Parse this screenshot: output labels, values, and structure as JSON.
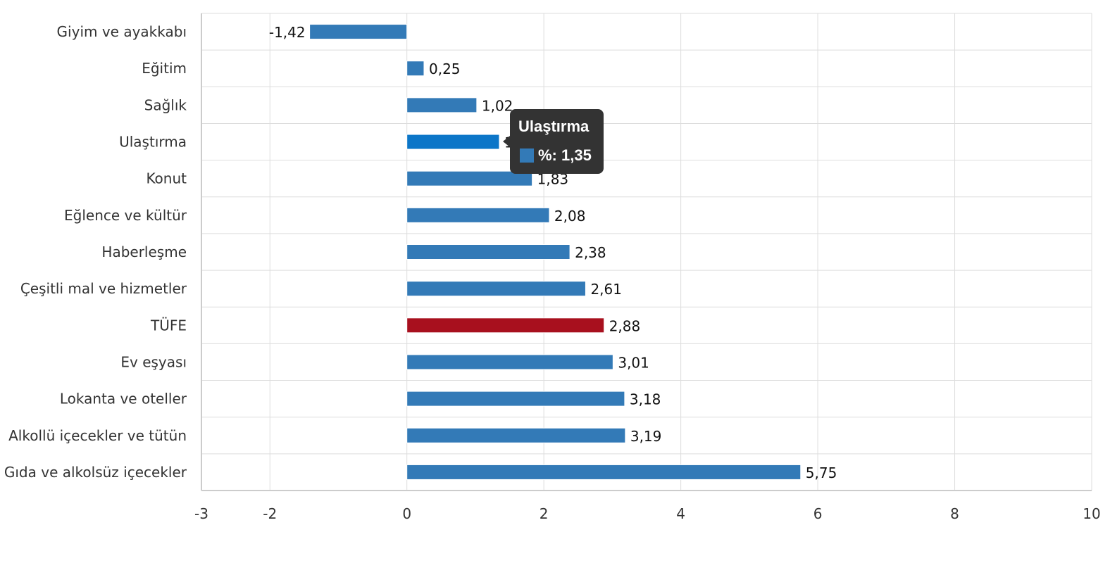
{
  "chart_data": {
    "type": "bar",
    "orientation": "horizontal",
    "categories": [
      "Giyim ve ayakkabı",
      "Eğitim",
      "Sağlık",
      "Ulaştırma",
      "Konut",
      "Eğlence ve kültür",
      "Haberleşme",
      "Çeşitli mal ve hizmetler",
      "TÜFE",
      "Ev eşyası",
      "Lokanta ve oteller",
      "Alkollü içecekler ve tütün",
      "Gıda ve alkolsüz içecekler"
    ],
    "values": [
      -1.42,
      0.25,
      1.02,
      1.35,
      1.83,
      2.08,
      2.38,
      2.61,
      2.88,
      3.01,
      3.18,
      3.19,
      5.75
    ],
    "data_labels": [
      "-1,42",
      "0,25",
      "1,02",
      "1,35",
      "1,83",
      "2,08",
      "2,38",
      "2,61",
      "2,88",
      "3,01",
      "3,18",
      "3,19",
      "5,75"
    ],
    "xlim": [
      -3,
      10
    ],
    "xticks": [
      -3,
      -2,
      0,
      2,
      4,
      6,
      8,
      10
    ],
    "xtick_labels": [
      "-3",
      "-2",
      "0",
      "2",
      "4",
      "6",
      "8",
      "10"
    ],
    "grid": true,
    "title": "",
    "xlabel": "",
    "ylabel": "",
    "colors": {
      "bar": "#337ab7",
      "highlight_bar": "#0c76c8",
      "tufe_bar": "#a8101e",
      "grid": "#dddddd",
      "tooltip_bg": "#333333"
    },
    "highlight_category": "Ulaştırma",
    "special_category": "TÜFE"
  },
  "tooltip": {
    "title": "Ulaştırma",
    "value_text": "%: 1,35"
  }
}
